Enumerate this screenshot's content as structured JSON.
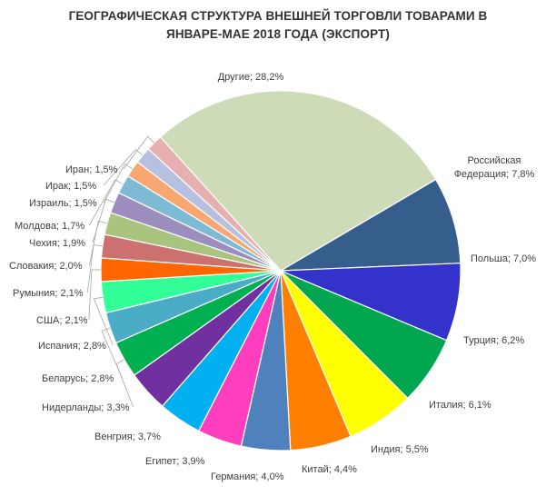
{
  "chart_data": {
    "type": "pie",
    "title": "ГЕОГРАФИЧЕСКАЯ СТРУКТУРА ВНЕШНЕЙ ТОРГОВЛИ ТОВАРАМИ В ЯНВАРЕ-МАЕ 2018 ГОДА (ЭКСПОРТ)",
    "title_lines": [
      "ГЕОГРАФИЧЕСКАЯ СТРУКТУРА ВНЕШНЕЙ ТОРГОВЛИ ТОВАРАМИ В",
      "ЯНВАРЕ-МАЕ 2018 ГОДА (ЭКСПОРТ)"
    ],
    "legend": "none",
    "slices": [
      {
        "name": "Другие",
        "value": 28.2,
        "label_lines": [
          "Другие; 28,2%"
        ],
        "color": "#cddbb8"
      },
      {
        "name": "Российская Федерация",
        "value": 7.8,
        "label_lines": [
          "Российская",
          "Федерация; 7,8%"
        ],
        "color": "#355e8d"
      },
      {
        "name": "Польша",
        "value": 7.0,
        "label_lines": [
          "Польша; 7,0%"
        ],
        "color": "#3333cc"
      },
      {
        "name": "Турция",
        "value": 6.2,
        "label_lines": [
          "Турция; 6,2%"
        ],
        "color": "#00a650"
      },
      {
        "name": "Италия",
        "value": 6.1,
        "label_lines": [
          "Италия; 6,1%"
        ],
        "color": "#ffff00"
      },
      {
        "name": "Индия",
        "value": 5.5,
        "label_lines": [
          "Индия; 5,5%"
        ],
        "color": "#ff8000"
      },
      {
        "name": "Китай",
        "value": 4.4,
        "label_lines": [
          "Китай; 4,4%"
        ],
        "color": "#4f81bd"
      },
      {
        "name": "Германия",
        "value": 4.0,
        "label_lines": [
          "Германия; 4,0%"
        ],
        "color": "#ff3ebf"
      },
      {
        "name": "Египет",
        "value": 3.9,
        "label_lines": [
          "Египет; 3,9%"
        ],
        "color": "#00b0f0"
      },
      {
        "name": "Венгрия",
        "value": 3.7,
        "label_lines": [
          "Венгрия; 3,7%"
        ],
        "color": "#7030a0"
      },
      {
        "name": "Нидерланды",
        "value": 3.3,
        "label_lines": [
          "Нидерланды; 3,3%"
        ],
        "color": "#00b050"
      },
      {
        "name": "Беларусь",
        "value": 2.8,
        "label_lines": [
          "Беларусь; 2,8%"
        ],
        "color": "#4bacc6"
      },
      {
        "name": "Испания",
        "value": 2.8,
        "label_lines": [
          "Испания; 2,8%"
        ],
        "color": "#33ff99"
      },
      {
        "name": "США",
        "value": 2.1,
        "label_lines": [
          "США; 2,1%"
        ],
        "color": "#ff6600"
      },
      {
        "name": "Румыния",
        "value": 2.1,
        "label_lines": [
          "Румыния; 2,1%"
        ],
        "color": "#cd7070"
      },
      {
        "name": "Словакия",
        "value": 2.0,
        "label_lines": [
          "Словакия; 2,0%"
        ],
        "color": "#a9c47f"
      },
      {
        "name": "Чехия",
        "value": 1.9,
        "label_lines": [
          "Чехия; 1,9%"
        ],
        "color": "#9b8dbd"
      },
      {
        "name": "Молдова",
        "value": 1.7,
        "label_lines": [
          "Молдова; 1,7%"
        ],
        "color": "#7fbad4"
      },
      {
        "name": "Израиль",
        "value": 1.5,
        "label_lines": [
          "Израиль; 1,5%"
        ],
        "color": "#f8a770"
      },
      {
        "name": "Ирак",
        "value": 1.5,
        "label_lines": [
          "Ирак; 1,5%"
        ],
        "color": "#b8c0e0"
      },
      {
        "name": "Иран",
        "value": 1.5,
        "label_lines": [
          "Иран; 1,5%"
        ],
        "color": "#e6b0b0"
      }
    ]
  }
}
